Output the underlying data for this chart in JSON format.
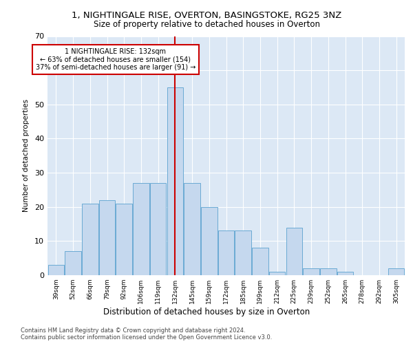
{
  "title1": "1, NIGHTINGALE RISE, OVERTON, BASINGSTOKE, RG25 3NZ",
  "title2": "Size of property relative to detached houses in Overton",
  "xlabel": "Distribution of detached houses by size in Overton",
  "ylabel": "Number of detached properties",
  "bar_labels": [
    "39sqm",
    "52sqm",
    "66sqm",
    "79sqm",
    "92sqm",
    "106sqm",
    "119sqm",
    "132sqm",
    "145sqm",
    "159sqm",
    "172sqm",
    "185sqm",
    "199sqm",
    "212sqm",
    "225sqm",
    "239sqm",
    "252sqm",
    "265sqm",
    "278sqm",
    "292sqm",
    "305sqm"
  ],
  "bar_values": [
    3,
    7,
    21,
    22,
    21,
    27,
    27,
    55,
    27,
    20,
    13,
    13,
    8,
    1,
    14,
    2,
    2,
    1,
    0,
    0,
    2
  ],
  "bar_color": "#c5d8ee",
  "bar_edge_color": "#6aaad4",
  "vline_index": 7,
  "vline_color": "#cc0000",
  "annotation_lines": [
    "1 NIGHTINGALE RISE: 132sqm",
    "← 63% of detached houses are smaller (154)",
    "37% of semi-detached houses are larger (91) →"
  ],
  "ylim": [
    0,
    70
  ],
  "yticks": [
    0,
    10,
    20,
    30,
    40,
    50,
    60,
    70
  ],
  "grid_color": "#ffffff",
  "bg_color": "#dce8f5",
  "footer1": "Contains HM Land Registry data © Crown copyright and database right 2024.",
  "footer2": "Contains public sector information licensed under the Open Government Licence v3.0."
}
